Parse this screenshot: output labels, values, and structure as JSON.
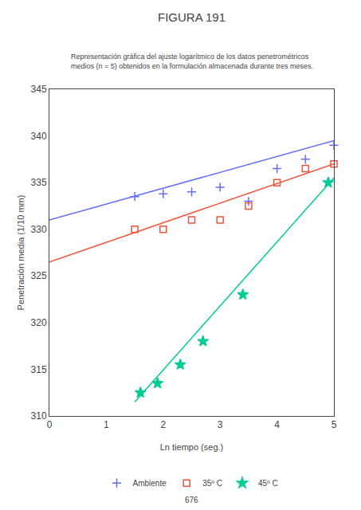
{
  "chart_data": {
    "type": "scatter",
    "title": "FIGURA 191",
    "subtitle": [
      "Representación gráfica del ajuste logarítmico de los datos penetrométricos",
      "medios (n = 5) obtenidos en la formulación almacenada durante tres meses."
    ],
    "annotations": [
      "676"
    ],
    "x_label": "Ln tiempo (seg.)",
    "y_label": "Penetración media (1/10 mm)",
    "xlim": [
      0,
      5
    ],
    "ylim": [
      310,
      345
    ],
    "xticks": [
      0,
      1,
      2,
      3,
      4,
      5
    ],
    "yticks": [
      310,
      315,
      320,
      325,
      330,
      335,
      340,
      345
    ],
    "grid": false,
    "legend": "bottom",
    "series": [
      {
        "name": "Ambiente",
        "marker": "plus",
        "x": [
          1.5,
          2.0,
          2.5,
          3.0,
          3.5,
          4.0,
          4.5,
          5.0
        ],
        "values": [
          333.5,
          333.8,
          334.0,
          334.5,
          333.0,
          336.5,
          337.5,
          339.0
        ],
        "fit_x": [
          0,
          5
        ],
        "fit_values": [
          331.0,
          339.5
        ]
      },
      {
        "name": "35º C",
        "marker": "square_open",
        "x": [
          1.5,
          2.0,
          2.5,
          3.0,
          3.5,
          4.0,
          4.5,
          5.0
        ],
        "values": [
          330.0,
          330.0,
          331.0,
          331.0,
          332.5,
          335.0,
          336.5,
          337.0
        ],
        "fit_x": [
          0,
          5
        ],
        "fit_values": [
          326.5,
          337.0
        ]
      },
      {
        "name": "45º C",
        "marker": "star",
        "x": [
          1.6,
          1.9,
          2.3,
          2.7,
          3.4,
          4.9
        ],
        "values": [
          312.5,
          313.5,
          315.5,
          318.0,
          323.0,
          335.0
        ],
        "fit_x": [
          1.5,
          5
        ],
        "fit_values": [
          311.5,
          335.5
        ]
      }
    ]
  }
}
